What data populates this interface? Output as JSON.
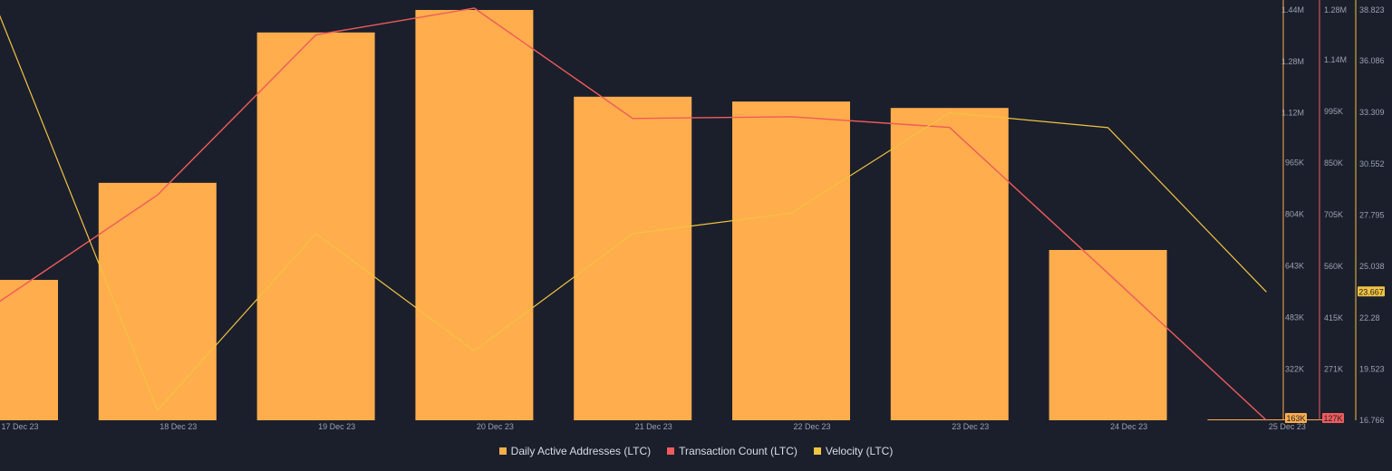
{
  "colors": {
    "background": "#1b1f2c",
    "daily_active": "#ffad4d",
    "transaction": "#f05b5b",
    "velocity": "#f2c341",
    "axis_text": "#9aa0ae"
  },
  "chart_data": {
    "type": "bar",
    "categories": [
      "17 Dec 23",
      "18 Dec 23",
      "19 Dec 23",
      "20 Dec 23",
      "21 Dec 23",
      "22 Dec 23",
      "23 Dec 23",
      "24 Dec 23",
      "25 Dec 23"
    ],
    "series": [
      {
        "name": "Daily Active Addresses (LTC)",
        "type": "bar",
        "axis": "left",
        "values": [
          600000,
          902000,
          1370000,
          1440000,
          1170000,
          1155000,
          1135000,
          693000,
          163000
        ]
      },
      {
        "name": "Transaction Count (LTC)",
        "type": "line",
        "axis": "middle",
        "values": [
          460000,
          760000,
          1210000,
          1285000,
          975000,
          980000,
          950000,
          540000,
          127000
        ]
      },
      {
        "name": "Velocity (LTC)",
        "type": "line",
        "axis": "right",
        "values": [
          38.6,
          17.3,
          26.8,
          20.5,
          26.8,
          27.9,
          33.3,
          32.5,
          23.667
        ]
      }
    ],
    "axes": {
      "daily_active": {
        "ticks": [
          "1.44M",
          "1.28M",
          "1.12M",
          "965K",
          "804K",
          "643K",
          "483K",
          "322K"
        ],
        "tick_values": [
          1440000,
          1280000,
          1120000,
          965000,
          804000,
          643000,
          483000,
          322000
        ],
        "ylim": [
          163000,
          1440000
        ],
        "current_label": "163K"
      },
      "transaction": {
        "ticks": [
          "1.28M",
          "1.14M",
          "995K",
          "850K",
          "705K",
          "560K",
          "415K",
          "271K"
        ],
        "tick_values": [
          1280000,
          1140000,
          995000,
          850000,
          705000,
          560000,
          415000,
          271000
        ],
        "ylim": [
          127000,
          1280000
        ],
        "current_label": "127K"
      },
      "velocity": {
        "ticks": [
          "38.823",
          "36.086",
          "33.309",
          "30.552",
          "27.795",
          "25.038",
          "22.28",
          "19.523",
          "16.766"
        ],
        "tick_values": [
          38.823,
          36.086,
          33.309,
          30.552,
          27.795,
          25.038,
          22.28,
          19.523,
          16.766
        ],
        "ylim": [
          16.766,
          38.823
        ],
        "current_label": "23.667"
      }
    },
    "legend": [
      "Daily Active Addresses (LTC)",
      "Transaction Count (LTC)",
      "Velocity (LTC)"
    ],
    "legend_position": "bottom-center",
    "grid": false
  }
}
